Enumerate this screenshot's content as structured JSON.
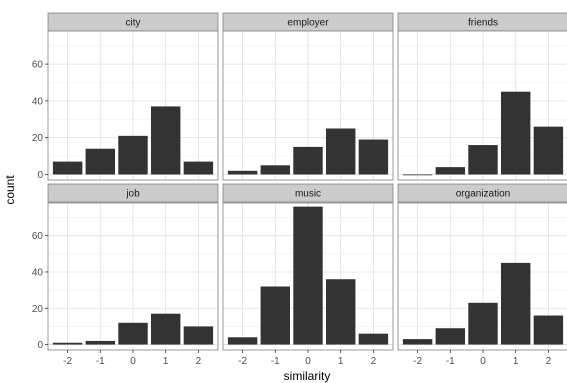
{
  "chart_data": {
    "type": "bar",
    "facet_layout": "2 rows x 3 columns, shared axes",
    "xlabel": "similarity",
    "ylabel": "count",
    "x_categories": [
      "-2",
      "-1",
      "0",
      "1",
      "2"
    ],
    "yticks": [
      0,
      20,
      40,
      60
    ],
    "ylim": [
      -3,
      78
    ],
    "grid": true,
    "theme": "bw",
    "bar_color": "#333333",
    "strip_color": "#cccccc",
    "panels": [
      {
        "name": "city",
        "values": [
          7,
          14,
          21,
          37,
          7
        ]
      },
      {
        "name": "employer",
        "values": [
          2,
          5,
          15,
          25,
          19
        ]
      },
      {
        "name": "friends",
        "values": [
          0,
          4,
          16,
          45,
          26
        ]
      },
      {
        "name": "job",
        "values": [
          1,
          2,
          12,
          17,
          10
        ]
      },
      {
        "name": "music",
        "values": [
          4,
          32,
          76,
          36,
          6
        ]
      },
      {
        "name": "organization",
        "values": [
          3,
          9,
          23,
          45,
          16
        ]
      }
    ]
  }
}
